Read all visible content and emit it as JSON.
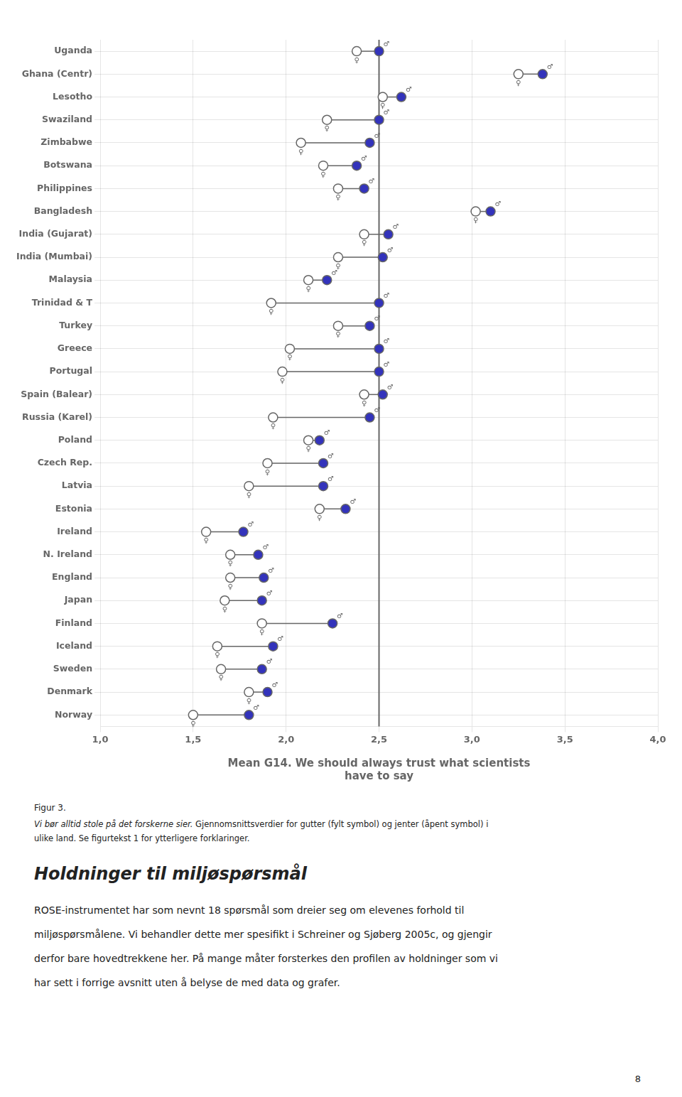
{
  "chart_data": {
    "type": "dumbbell",
    "orientation": "horizontal",
    "categories": [
      "Uganda",
      "Ghana (Centr)",
      "Lesotho",
      "Swaziland",
      "Zimbabwe",
      "Botswana",
      "Philippines",
      "Bangladesh",
      "India (Gujarat)",
      "India (Mumbai)",
      "Malaysia",
      "Trinidad & T",
      "Turkey",
      "Greece",
      "Portugal",
      "Spain (Balear)",
      "Russia (Karel)",
      "Poland",
      "Czech Rep.",
      "Latvia",
      "Estonia",
      "Ireland",
      "N. Ireland",
      "England",
      "Japan",
      "Finland",
      "Iceland",
      "Sweden",
      "Denmark",
      "Norway"
    ],
    "series": [
      {
        "color": "white",
        "marker": "open circle",
        "values": [
          2.38,
          3.25,
          2.52,
          2.22,
          2.08,
          2.2,
          2.28,
          3.02,
          2.42,
          2.28,
          2.12,
          1.92,
          2.28,
          2.02,
          1.98,
          2.42,
          1.93,
          2.12,
          1.9,
          1.8,
          2.18,
          1.57,
          1.7,
          1.7,
          1.67,
          1.87,
          1.63,
          1.65,
          1.8,
          1.5
        ]
      },
      {
        "color": "#3333bb",
        "marker": "filled circle",
        "values": [
          2.5,
          3.38,
          2.62,
          2.5,
          2.45,
          2.38,
          2.42,
          3.1,
          2.55,
          2.52,
          2.22,
          2.5,
          2.45,
          2.5,
          2.5,
          2.52,
          2.45,
          2.18,
          2.2,
          2.2,
          2.32,
          1.77,
          1.85,
          1.88,
          1.87,
          2.25,
          1.93,
          1.87,
          1.9,
          1.8
        ]
      }
    ],
    "xlim": [
      1.0,
      4.0
    ],
    "xticks": [
      {
        "value": 1.0,
        "label": "1,0"
      },
      {
        "value": 1.5,
        "label": "1,5"
      },
      {
        "value": 2.0,
        "label": "2,0"
      },
      {
        "value": 2.5,
        "label": "2,5"
      },
      {
        "value": 3.0,
        "label": "3,0"
      },
      {
        "value": 3.5,
        "label": "3,5"
      },
      {
        "value": 4.0,
        "label": "4,0"
      }
    ],
    "xlabel": [
      "Mean G14. We should always trust what scientists",
      "have to say"
    ],
    "grid": true,
    "annotations": [
      {
        "text": "♀",
        "series": 0
      },
      {
        "text": "♂",
        "series": 1
      },
      {
        "x": 2.5
      },
      {
        "text": "Figur 3."
      },
      {
        "text": [
          "Vi bør alltid stole på det forskerne sier.",
          " Gjennomsnittsverdier for gutter (fylt symbol) og jenter (åpent symbol) i"
        ]
      },
      {
        "text": "ulike land. Se figurtekst 1 for ytterligere forklaringer."
      },
      {
        "text": "Holdninger til miljøspørsmål"
      },
      {
        "text": [
          "ROSE-instrumentet har som nevnt 18 spørsmål som dreier seg om elevenes forhold til",
          "miljøspørsmålene. Vi behandler dette mer spesifikt i Schreiner og Sjøberg 2005c, og gjengir",
          "derfor bare hovedtrekkene her. På mange måter forsterkes den profilen av holdninger som vi",
          "har sett i forrige avsnitt uten å belyse de med data og grafer."
        ]
      },
      {
        "text": "8"
      }
    ]
  }
}
